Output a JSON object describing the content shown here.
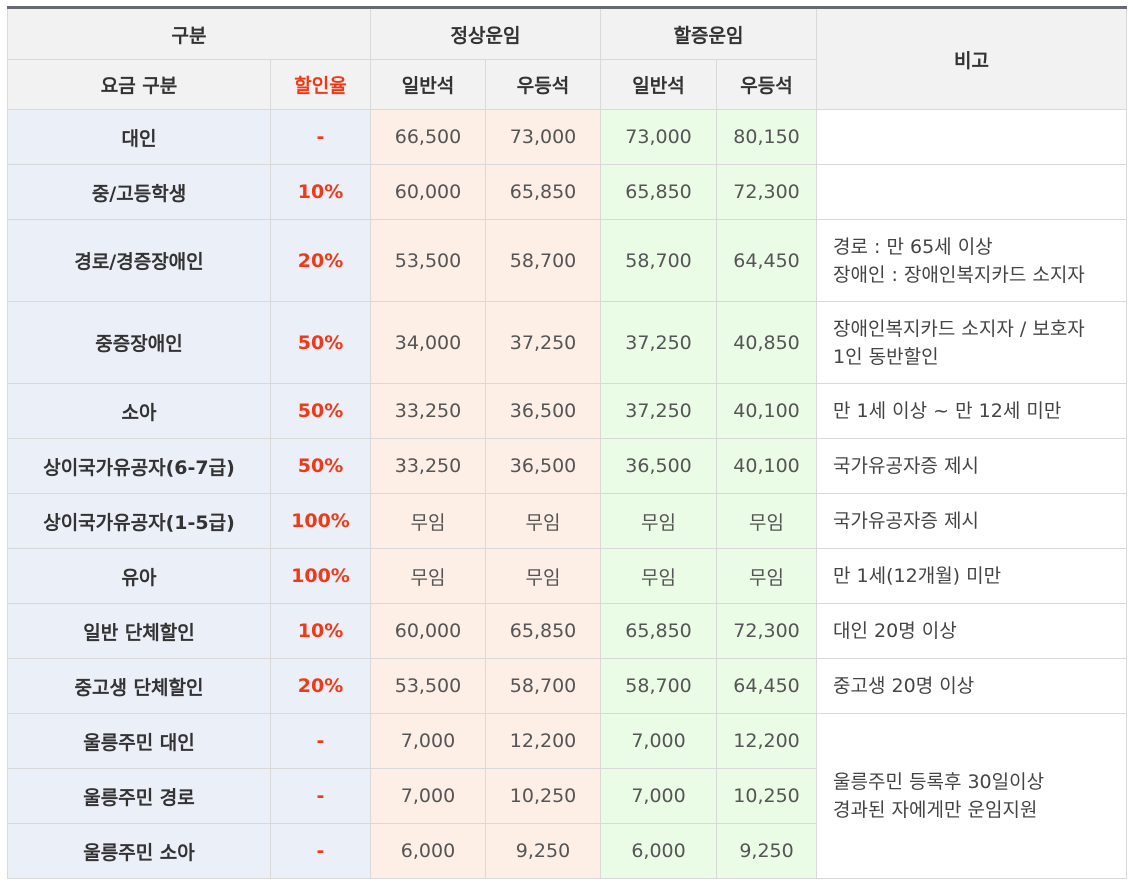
{
  "header": {
    "category": "구분",
    "normal_fare": "정상운임",
    "surcharge_fare": "할증운임",
    "note": "비고",
    "fare_type": "요금 구분",
    "discount_rate": "할인율",
    "normal_general": "일반석",
    "normal_premium": "우등석",
    "surcharge_general": "일반석",
    "surcharge_premium": "우등석"
  },
  "rows": [
    {
      "label": "대인",
      "rate": "-",
      "n_gen": "66,500",
      "n_prem": "73,000",
      "s_gen": "73,000",
      "s_prem": "80,150"
    },
    {
      "label": "중/고등학생",
      "rate": "10%",
      "n_gen": "60,000",
      "n_prem": "65,850",
      "s_gen": "65,850",
      "s_prem": "72,300"
    },
    {
      "label": "경로/경증장애인",
      "rate": "20%",
      "n_gen": "53,500",
      "n_prem": "58,700",
      "s_gen": "58,700",
      "s_prem": "64,450"
    },
    {
      "label": "중증장애인",
      "rate": "50%",
      "n_gen": "34,000",
      "n_prem": "37,250",
      "s_gen": "37,250",
      "s_prem": "40,850"
    },
    {
      "label": "소아",
      "rate": "50%",
      "n_gen": "33,250",
      "n_prem": "36,500",
      "s_gen": "37,250",
      "s_prem": "40,100"
    },
    {
      "label": "상이국가유공자(6-7급)",
      "rate": "50%",
      "n_gen": "33,250",
      "n_prem": "36,500",
      "s_gen": "36,500",
      "s_prem": "40,100"
    },
    {
      "label": "상이국가유공자(1-5급)",
      "rate": "100%",
      "n_gen": "무임",
      "n_prem": "무임",
      "s_gen": "무임",
      "s_prem": "무임"
    },
    {
      "label": "유아",
      "rate": "100%",
      "n_gen": "무임",
      "n_prem": "무임",
      "s_gen": "무임",
      "s_prem": "무임"
    },
    {
      "label": "일반 단체할인",
      "rate": "10%",
      "n_gen": "60,000",
      "n_prem": "65,850",
      "s_gen": "65,850",
      "s_prem": "72,300"
    },
    {
      "label": "중고생 단체할인",
      "rate": "20%",
      "n_gen": "53,500",
      "n_prem": "58,700",
      "s_gen": "58,700",
      "s_prem": "64,450"
    },
    {
      "label": "울릉주민 대인",
      "rate": "-",
      "n_gen": "7,000",
      "n_prem": "12,200",
      "s_gen": "7,000",
      "s_prem": "12,200"
    },
    {
      "label": "울릉주민 경로",
      "rate": "-",
      "n_gen": "7,000",
      "n_prem": "10,250",
      "s_gen": "7,000",
      "s_prem": "10,250"
    },
    {
      "label": "울릉주민 소아",
      "rate": "-",
      "n_gen": "6,000",
      "n_prem": "9,250",
      "s_gen": "6,000",
      "s_prem": "9,250"
    }
  ],
  "notes": {
    "senior_disabled_1": "경로 : 만 65세 이상",
    "senior_disabled_2": "장애인 : 장애인복지카드 소지자",
    "severe_1": "장애인복지카드 소지자 / 보호자",
    "severe_2": "1인 동반할인",
    "child": "만 1세 이상 ~ 만 12세 미만",
    "veteran_67": "국가유공자증 제시",
    "veteran_15": "국가유공자증 제시",
    "infant": "만 1세(12개월) 미만",
    "group_general": "대인 20명 이상",
    "group_student": "중고생 20명 이상",
    "ulleung_1": "울릉주민 등록후 30일이상",
    "ulleung_2": "경과된 자에게만 운임지원"
  }
}
